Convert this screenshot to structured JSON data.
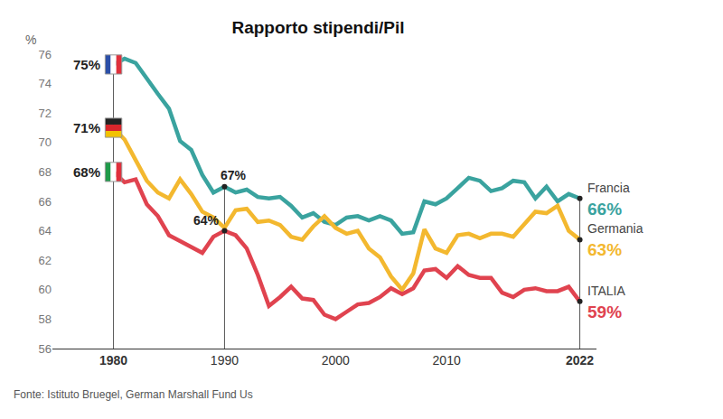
{
  "chart_data": {
    "type": "line",
    "title": "Rapporto stipendi/Pil",
    "ylabel": "%",
    "source": "Fonte: Istituto Bruegel, German Marshall Fund Us",
    "x": [
      1980,
      1981,
      1982,
      1983,
      1984,
      1985,
      1986,
      1987,
      1988,
      1989,
      1990,
      1991,
      1992,
      1993,
      1994,
      1995,
      1996,
      1997,
      1998,
      1999,
      2000,
      2001,
      2002,
      2003,
      2004,
      2005,
      2006,
      2007,
      2008,
      2009,
      2010,
      2011,
      2012,
      2013,
      2014,
      2015,
      2016,
      2017,
      2018,
      2019,
      2020,
      2021,
      2022
    ],
    "series": [
      {
        "name": "Francia",
        "color": "#3aa39f",
        "values": [
          75.3,
          75.7,
          75.4,
          74.3,
          73.3,
          72.3,
          70.1,
          69.5,
          67.8,
          66.6,
          67.0,
          66.6,
          66.8,
          66.3,
          66.2,
          66.3,
          65.7,
          64.9,
          65.2,
          64.6,
          64.4,
          64.9,
          65.0,
          64.7,
          65.0,
          64.7,
          63.8,
          63.9,
          66.0,
          65.8,
          66.2,
          66.9,
          67.6,
          67.4,
          66.7,
          66.9,
          67.4,
          67.3,
          66.2,
          67.0,
          66.0,
          66.5,
          66.2
        ]
      },
      {
        "name": "Germania",
        "color": "#f3b82f",
        "values": [
          71.0,
          70.2,
          68.8,
          67.4,
          66.6,
          66.2,
          67.5,
          66.5,
          65.3,
          64.9,
          64.2,
          65.4,
          65.5,
          64.6,
          64.7,
          64.4,
          63.6,
          63.4,
          64.3,
          65.0,
          64.2,
          63.8,
          64.0,
          62.8,
          62.2,
          60.9,
          60.0,
          61.1,
          64.1,
          62.8,
          62.5,
          63.7,
          63.8,
          63.5,
          63.8,
          63.8,
          63.6,
          64.5,
          65.3,
          65.2,
          65.7,
          64.0,
          63.4
        ]
      },
      {
        "name": "ITALIA",
        "color": "#e0434f",
        "values": [
          68.0,
          67.3,
          67.5,
          65.8,
          65.0,
          63.7,
          63.3,
          62.9,
          62.5,
          63.6,
          64.0,
          63.7,
          62.8,
          61.0,
          58.9,
          59.5,
          60.2,
          59.4,
          59.3,
          58.3,
          58.0,
          58.5,
          59.0,
          59.1,
          59.5,
          60.1,
          59.7,
          60.1,
          61.3,
          61.4,
          60.8,
          61.6,
          61.0,
          60.8,
          60.8,
          59.8,
          59.5,
          60.0,
          60.1,
          59.9,
          59.9,
          60.2,
          59.2
        ]
      }
    ],
    "annotations": [
      {
        "series": "Francia",
        "x": 1980,
        "text": "75%"
      },
      {
        "series": "Germania",
        "x": 1980,
        "text": "71%"
      },
      {
        "series": "ITALIA",
        "x": 1980,
        "text": "68%"
      },
      {
        "series": "Francia",
        "x": 1990,
        "text": "67%"
      },
      {
        "series": "ITALIA",
        "x": 1990,
        "text": "64%"
      },
      {
        "series": "Francia",
        "x": 2022,
        "text": "66%"
      },
      {
        "series": "Germania",
        "x": 2022,
        "text": "63%"
      },
      {
        "series": "ITALIA",
        "x": 2022,
        "text": "59%"
      }
    ],
    "xlim": [
      1974.5,
      2023.5
    ],
    "xticks": [
      1980,
      1990,
      2000,
      2010,
      2022
    ],
    "ylim": [
      56,
      76
    ],
    "yticks": [
      56,
      58,
      60,
      62,
      64,
      66,
      68,
      70,
      72,
      74,
      76
    ],
    "grid": false
  }
}
